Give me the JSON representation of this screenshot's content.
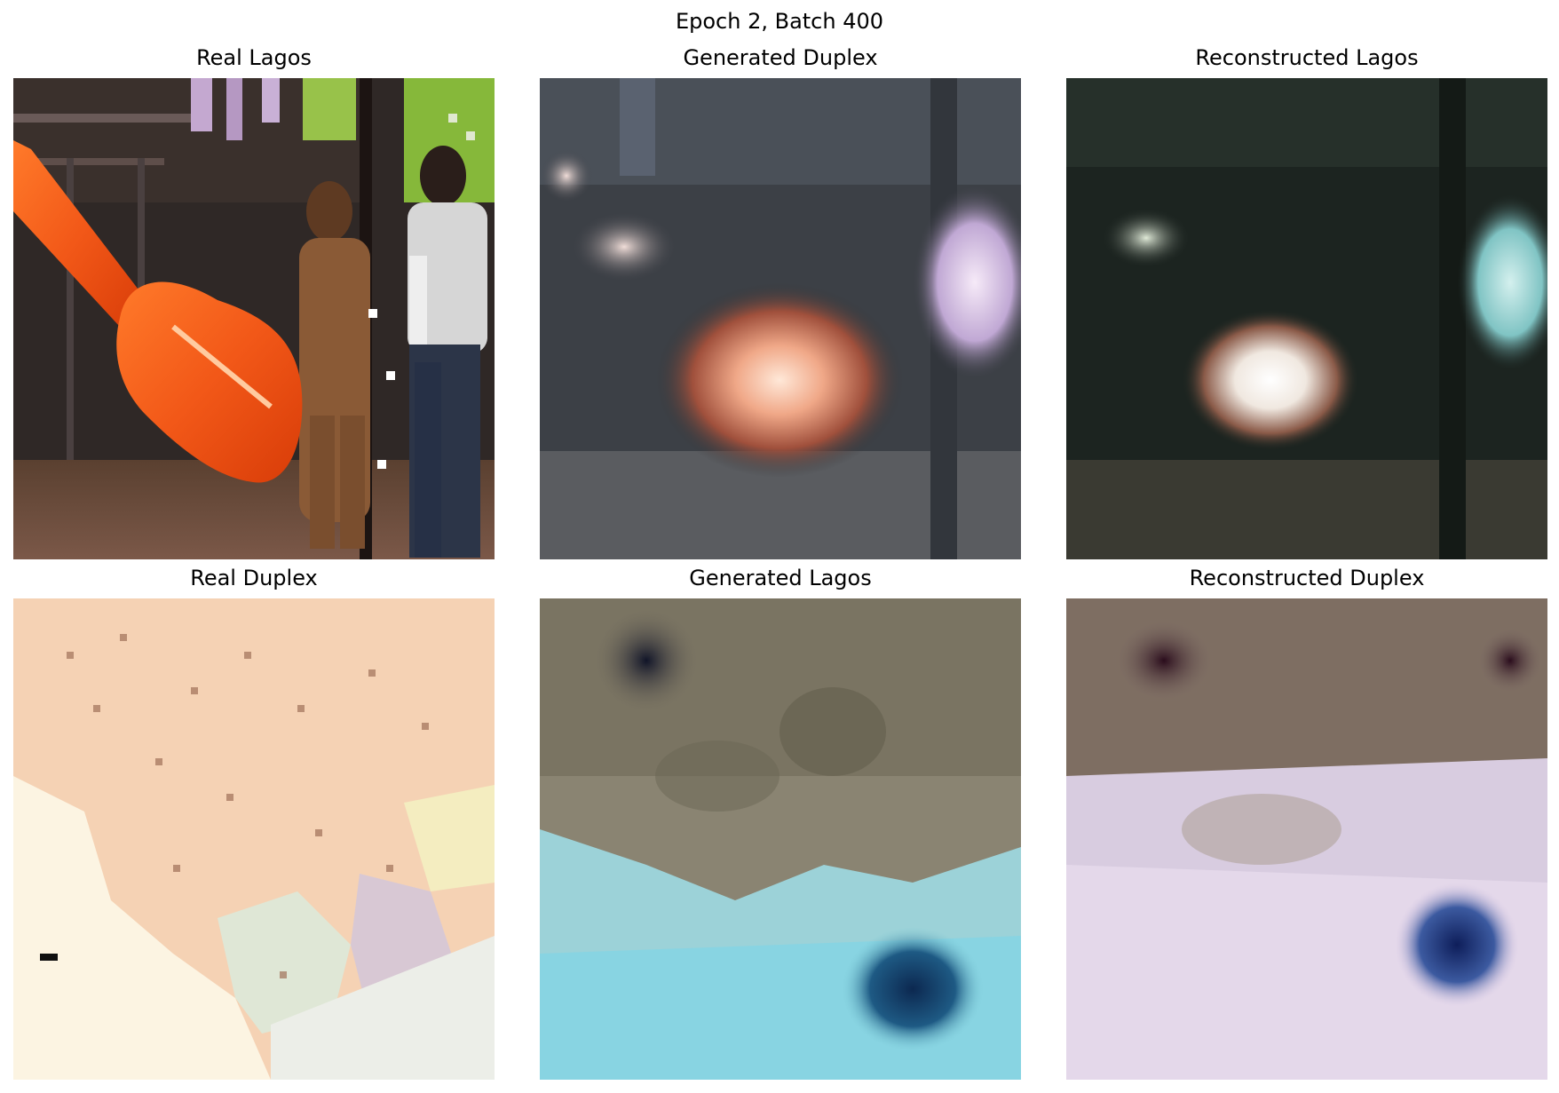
{
  "figure": {
    "suptitle": "Epoch 2, Batch 400"
  },
  "panels": [
    {
      "title": "Real Lagos"
    },
    {
      "title": "Generated Duplex"
    },
    {
      "title": "Reconstructed Lagos"
    },
    {
      "title": "Real Duplex"
    },
    {
      "title": "Generated Lagos"
    },
    {
      "title": "Reconstructed Duplex"
    }
  ]
}
